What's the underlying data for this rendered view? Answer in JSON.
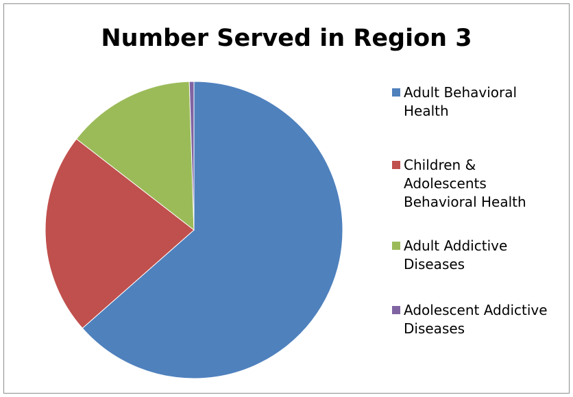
{
  "chart_data": {
    "type": "pie",
    "title": "Number Served in Region 3",
    "legend_position": "right",
    "slices": [
      {
        "label": "Adult Behavioral Health",
        "legend_lines": [
          "Adult Behavioral",
          "Health"
        ],
        "value": 63.5,
        "color": "#4f81bd"
      },
      {
        "label": "Children & Adolescents Behavioral Health",
        "legend_lines": [
          "Children &",
          "Adolescents",
          "Behavioral Health"
        ],
        "value": 22.0,
        "color": "#c0504d"
      },
      {
        "label": "Adult Addictive Diseases",
        "legend_lines": [
          "Adult Addictive",
          "Diseases"
        ],
        "value": 14.0,
        "color": "#9bbb59"
      },
      {
        "label": "Adolescent Addictive Diseases",
        "legend_lines": [
          "Adolescent Addictive",
          "Diseases"
        ],
        "value": 0.5,
        "color": "#8064a2"
      }
    ]
  }
}
